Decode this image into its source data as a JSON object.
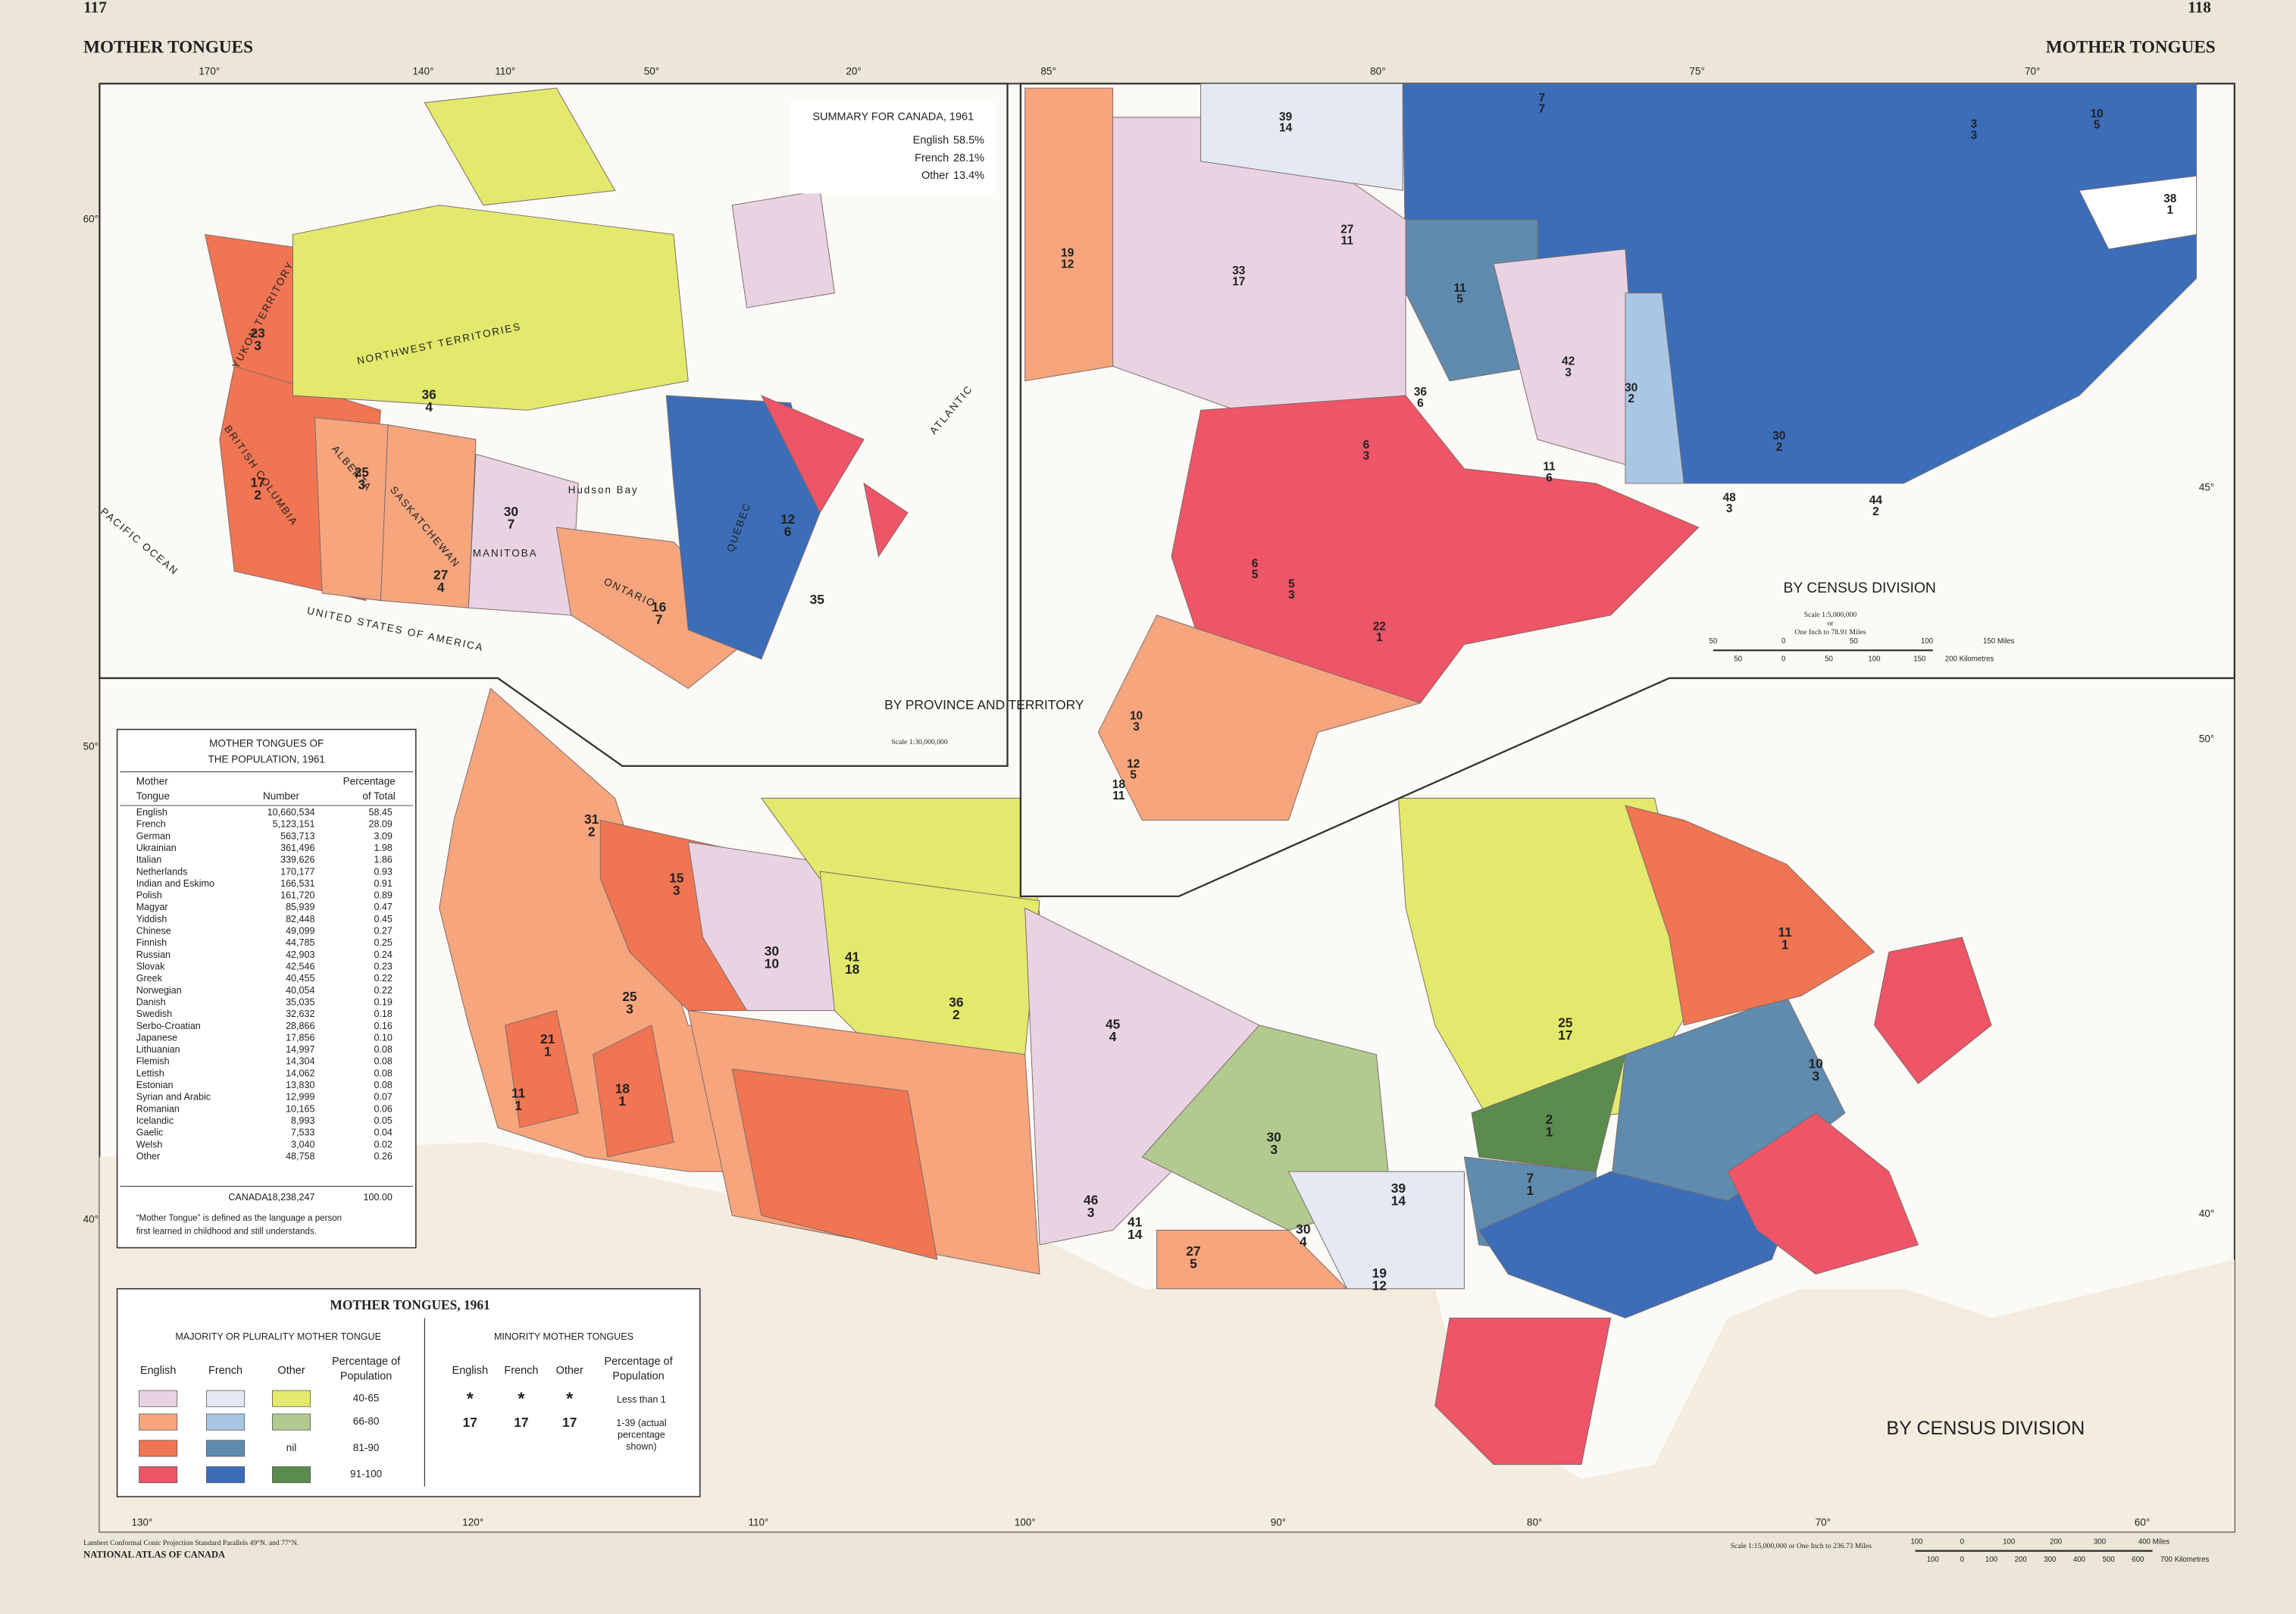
{
  "header": {
    "page_left": "117",
    "page_right": "118",
    "title_left": "MOTHER TONGUES",
    "title_right": "MOTHER TONGUES"
  },
  "province_inset": {
    "title": "BY PROVINCE AND TERRITORY",
    "scale": "Scale 1:30,000,000",
    "summary": {
      "title": "SUMMARY FOR CANADA, 1961",
      "rows": [
        [
          "English",
          "58.5%"
        ],
        [
          "French",
          "28.1%"
        ],
        [
          "Other",
          "13.4%"
        ]
      ]
    },
    "place_names": [
      "YUKON TERRITORY",
      "NORTHWEST TERRITORIES",
      "BRITISH COLUMBIA",
      "ALBERTA",
      "SASKATCHEWAN",
      "MANITOBA",
      "ONTARIO",
      "QUEBEC",
      "Hudson Bay",
      "PACIFIC OCEAN",
      "UNITED STATES OF AMERICA",
      "ATLANTIC"
    ],
    "labels": [
      {
        "values": [
          23,
          3
        ],
        "colors": [
          "#3b8a3b",
          "#2b63b0"
        ]
      },
      {
        "values": [
          36,
          4
        ],
        "colors": [
          "#e8343c",
          "#2b63b0"
        ]
      },
      {
        "values": [
          17,
          2
        ],
        "colors": [
          "#3b8a3b",
          "#2b63b0"
        ]
      },
      {
        "values": [
          25,
          3
        ],
        "colors": [
          "#3b8a3b",
          "#2b63b0"
        ]
      },
      {
        "values": [
          27,
          4
        ],
        "colors": [
          "#3b8a3b",
          "#2b63b0"
        ]
      },
      {
        "values": [
          30,
          7
        ],
        "colors": [
          "#3b8a3b",
          "#2b63b0"
        ]
      },
      {
        "values": [
          16,
          7
        ],
        "colors": [
          "#3b8a3b",
          "#2b63b0"
        ]
      },
      {
        "values": [
          12,
          6
        ],
        "colors": [
          "#e8343c",
          "#3b8a3b"
        ]
      },
      {
        "values": [
          35
        ],
        "colors": [
          "#2b63b0"
        ]
      }
    ],
    "graticule": [
      "170°",
      "140°",
      "110°",
      "50°",
      "20°",
      "60°"
    ]
  },
  "census_inset": {
    "title": "BY CENSUS DIVISION",
    "scale": [
      "Scale 1:5,000,000",
      "or",
      "One Inch to 78.91 Miles"
    ],
    "scale_miles": [
      "50",
      "0",
      "50",
      "100",
      "150 Miles"
    ],
    "scale_km": [
      "50",
      "0",
      "50",
      "100",
      "150",
      "200 Kilometres"
    ],
    "labels": [
      {
        "values": [
          39,
          14
        ],
        "colors": [
          "#e8343c",
          "#3b8a3b"
        ]
      },
      {
        "values": [
          19,
          12
        ],
        "colors": [
          "#3b8a3b",
          "#2b63b0"
        ]
      },
      {
        "values": [
          33,
          17
        ],
        "colors": [
          "#2b63b0",
          "#3b8a3b"
        ]
      },
      {
        "values": [
          27,
          11
        ],
        "colors": [
          "#2b63b0",
          "#3b8a3b"
        ]
      },
      {
        "values": [
          36,
          6
        ],
        "colors": [
          "#2b63b0",
          "#3b8a3b"
        ]
      },
      {
        "values": [
          42,
          3
        ],
        "colors": [
          "#2b63b0",
          "#3b8a3b"
        ]
      },
      {
        "values": [
          11,
          5
        ],
        "colors": [
          "#e8343c",
          "#3b8a3b"
        ]
      },
      {
        "values": [
          6,
          3
        ],
        "colors": [
          "#3b8a3b",
          "#2b63b0"
        ]
      },
      {
        "values": [
          11,
          6
        ],
        "colors": [
          "#3b8a3b",
          "#2b63b0"
        ]
      },
      {
        "values": [
          30,
          2
        ],
        "colors": [
          "#e8343c",
          "#3b8a3b"
        ]
      },
      {
        "values": [
          7,
          7
        ],
        "colors": [
          "#e8343c",
          "#3b8a3b"
        ]
      },
      {
        "values": [
          3,
          3
        ],
        "colors": [
          "#e8343c",
          "#3b8a3b"
        ]
      },
      {
        "values": [
          10,
          5
        ],
        "colors": [
          "#e8343c",
          "#3b8a3b"
        ]
      },
      {
        "values": [
          38,
          1
        ],
        "colors": [
          "#e8343c",
          "#3b8a3b"
        ]
      },
      {
        "values": [
          5,
          3
        ],
        "colors": [
          "#2b63b0",
          "#2b63b0"
        ]
      },
      {
        "values": [
          6,
          5
        ],
        "colors": [
          "#3b8a3b",
          "#2b63b0"
        ]
      },
      {
        "values": [
          10,
          3
        ],
        "colors": [
          "#3b8a3b",
          "#2b63b0"
        ]
      },
      {
        "values": [
          12,
          5
        ],
        "colors": [
          "#3b8a3b",
          "#2b63b0"
        ]
      },
      {
        "values": [
          18,
          11
        ],
        "colors": [
          "#3b8a3b",
          "#2b63b0"
        ]
      },
      {
        "values": [
          22,
          1
        ],
        "colors": [
          "#3b8a3b",
          "#2b63b0"
        ]
      },
      {
        "values": [
          30,
          2
        ],
        "colors": [
          "#e8343c",
          "#2b63b0"
        ]
      },
      {
        "values": [
          48,
          3
        ],
        "colors": [
          "#2b63b0",
          "#3b8a3b"
        ]
      },
      {
        "values": [
          44,
          2
        ],
        "colors": [
          "#2b63b0",
          "#3b8a3b"
        ]
      }
    ],
    "graticule": [
      "85°",
      "80°",
      "75°",
      "70°",
      "45°"
    ]
  },
  "main_map": {
    "title": "BY CENSUS DIVISION",
    "labels": [
      {
        "values": [
          31,
          2
        ],
        "colors": [
          "#3b8a3b",
          "#2b63b0"
        ]
      },
      {
        "values": [
          15,
          3
        ],
        "colors": [
          "#2b63b0",
          "#2b63b0"
        ]
      },
      {
        "values": [
          30,
          10
        ],
        "colors": [
          "#3b8a3b",
          "#2b63b0"
        ]
      },
      {
        "values": [
          41,
          18
        ],
        "colors": [
          "#e8343c",
          "#2b63b0"
        ]
      },
      {
        "values": [
          36,
          2
        ],
        "colors": [
          "#e8343c",
          "#2b63b0"
        ]
      },
      {
        "values": [
          45,
          4
        ],
        "colors": [
          "#3b8a3b",
          "#2b63b0"
        ]
      },
      {
        "values": [
          25,
          3
        ],
        "colors": [
          "#3b8a3b",
          "#2b63b0"
        ]
      },
      {
        "values": [
          21,
          1
        ],
        "colors": [
          "#3b8a3b",
          "#2b63b0"
        ]
      },
      {
        "values": [
          18,
          1
        ],
        "colors": [
          "#3b8a3b",
          "#2b63b0"
        ]
      },
      {
        "values": [
          11,
          1
        ],
        "colors": [
          "#3b8a3b",
          "#2b63b0"
        ]
      },
      {
        "values": [
          30,
          3
        ],
        "colors": [
          "#e8343c",
          "#2b63b0"
        ]
      },
      {
        "values": [
          39,
          14
        ],
        "colors": [
          "#e8343c",
          "#3b8a3b"
        ]
      },
      {
        "values": [
          25,
          17
        ],
        "colors": [
          "#2b63b0",
          "#e8343c"
        ]
      },
      {
        "values": [
          11,
          1
        ],
        "colors": [
          "#3b8a3b",
          "#2b63b0"
        ]
      },
      {
        "values": [
          10,
          3
        ],
        "colors": [
          "#e8343c",
          "#2b63b0"
        ]
      },
      {
        "values": [
          7,
          1
        ],
        "colors": [
          "#e8343c",
          "#2b63b0"
        ]
      },
      {
        "values": [
          2,
          1
        ],
        "colors": [
          "#e8343c",
          "#2b63b0"
        ]
      },
      {
        "values": [
          30,
          4
        ],
        "colors": [
          "#3b8a3b",
          "#2b63b0"
        ]
      },
      {
        "values": [
          27,
          5
        ],
        "colors": [
          "#3b8a3b",
          "#2b63b0"
        ]
      },
      {
        "values": [
          19,
          12
        ],
        "colors": [
          "#3b8a3b",
          "#2b63b0"
        ]
      },
      {
        "values": [
          41,
          14
        ],
        "colors": [
          "#e8343c",
          "#2b63b0"
        ]
      },
      {
        "values": [
          46,
          3
        ],
        "colors": [
          "#3b8a3b",
          "#2b63b0"
        ]
      }
    ],
    "graticule": [
      "130°",
      "120°",
      "110°",
      "100°",
      "90°",
      "80°",
      "70°",
      "60°",
      "50°",
      "40°",
      "50°",
      "40°"
    ]
  },
  "table": {
    "title": [
      "MOTHER TONGUES OF",
      "THE POPULATION, 1961"
    ],
    "columns": [
      [
        "Mother",
        "Tongue"
      ],
      [
        "Number"
      ],
      [
        "Percentage",
        "of Total"
      ]
    ],
    "rows": [
      [
        "English",
        "10,660,534",
        "58.45"
      ],
      [
        "French",
        "5,123,151",
        "28.09"
      ],
      [
        "German",
        "563,713",
        "3.09"
      ],
      [
        "Ukrainian",
        "361,496",
        "1.98"
      ],
      [
        "Italian",
        "339,626",
        "1.86"
      ],
      [
        "Netherlands",
        "170,177",
        "0.93"
      ],
      [
        "Indian and Eskimo",
        "166,531",
        "0.91"
      ],
      [
        "Polish",
        "161,720",
        "0.89"
      ],
      [
        "Magyar",
        "85,939",
        "0.47"
      ],
      [
        "Yiddish",
        "82,448",
        "0.45"
      ],
      [
        "Chinese",
        "49,099",
        "0.27"
      ],
      [
        "Finnish",
        "44,785",
        "0.25"
      ],
      [
        "Russian",
        "42,903",
        "0.24"
      ],
      [
        "Slovak",
        "42,546",
        "0.23"
      ],
      [
        "Greek",
        "40,455",
        "0.22"
      ],
      [
        "Norwegian",
        "40,054",
        "0.22"
      ],
      [
        "Danish",
        "35,035",
        "0.19"
      ],
      [
        "Swedish",
        "32,632",
        "0.18"
      ],
      [
        "Serbo-Croatian",
        "28,866",
        "0.16"
      ],
      [
        "Japanese",
        "17,856",
        "0.10"
      ],
      [
        "Lithuanian",
        "14,997",
        "0.08"
      ],
      [
        "Flemish",
        "14,304",
        "0.08"
      ],
      [
        "Lettish",
        "14,062",
        "0.08"
      ],
      [
        "Estonian",
        "13,830",
        "0.08"
      ],
      [
        "Syrian and Arabic",
        "12,999",
        "0.07"
      ],
      [
        "Romanian",
        "10,165",
        "0.06"
      ],
      [
        "Icelandic",
        "8,993",
        "0.05"
      ],
      [
        "Gaelic",
        "7,533",
        "0.04"
      ],
      [
        "Welsh",
        "3,040",
        "0.02"
      ],
      [
        "Other",
        "48,758",
        "0.26"
      ]
    ],
    "total": [
      "CANADA",
      "18,238,247",
      "100.00"
    ],
    "note": [
      "“Mother Tongue” is defined as the language a person",
      "first learned in childhood and still understands."
    ]
  },
  "legend": {
    "title": "MOTHER TONGUES, 1961",
    "majority": {
      "title": "MAJORITY OR PLURALITY MOTHER TONGUE",
      "languages": [
        "English",
        "French",
        "Other"
      ],
      "percentage_header": [
        "Percentage of",
        "Population"
      ],
      "rows": [
        {
          "range": "40-65",
          "colors": [
            "#e9d3e2",
            "#e4e9f3",
            "#e3e96c"
          ]
        },
        {
          "range": "66-80",
          "colors": [
            "#f6a57d",
            "#a9c7e5",
            "#b2c98f"
          ]
        },
        {
          "range": "81-90",
          "colors": [
            "#f07552",
            "#5f8bae"
          ],
          "other_label": "nil"
        },
        {
          "range": "91-100",
          "colors": [
            "#ee5567",
            "#3c6db8",
            "#5c8b4e"
          ]
        }
      ]
    },
    "minority": {
      "title": "MINORITY MOTHER TONGUES",
      "languages": [
        "English",
        "French",
        "Other"
      ],
      "percentage_header": [
        "Percentage of",
        "Population"
      ],
      "rows": [
        {
          "symbols": [
            "*",
            "*",
            "*"
          ],
          "colors": [
            "#e8343c",
            "#2b63b0",
            "#3b8a3b"
          ],
          "text": [
            "Less than 1"
          ]
        },
        {
          "symbols": [
            "17",
            "17",
            "17"
          ],
          "colors": [
            "#e8343c",
            "#2b63b0",
            "#3b8a3b"
          ],
          "text": [
            "1-39 (actual",
            "percentage",
            "shown)"
          ]
        }
      ]
    }
  },
  "footer": {
    "projection": "Lambert Conformal Conic Projection Standard Parallels 49°N. and 77°N.",
    "atlas": "NATIONAL ATLAS OF CANADA",
    "scale": "Scale 1:15,000,000 or One Inch to 236.73 Miles",
    "scale_miles": [
      "100",
      "0",
      "100",
      "200",
      "300",
      "400 Miles"
    ],
    "scale_km": [
      "100",
      "0",
      "100",
      "200",
      "300",
      "400",
      "500",
      "600",
      "700 Kilometres"
    ]
  }
}
